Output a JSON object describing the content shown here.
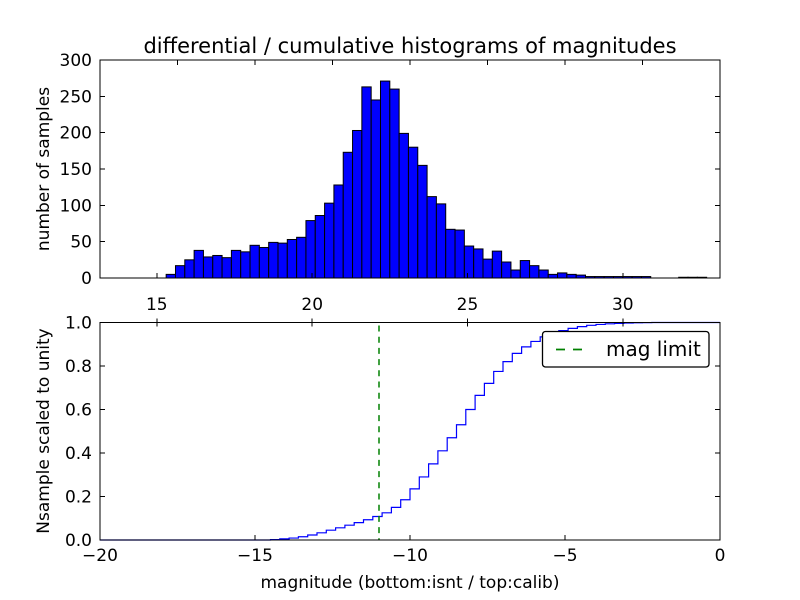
{
  "figure": {
    "title": "differential / cumulative histograms of magnitudes",
    "background_color": "#ffffff"
  },
  "top_plot": {
    "ylabel": "number of samples",
    "ylim": [
      0,
      300
    ],
    "ytick_values": [
      0,
      50,
      100,
      150,
      200,
      250,
      300
    ],
    "ytick_labels": [
      "0",
      "50",
      "100",
      "150",
      "200",
      "250",
      "300"
    ],
    "xlim": [
      13.17,
      33.13
    ],
    "xtick_values": [
      15,
      20,
      25,
      30
    ],
    "xtick_labels": [
      "15",
      "20",
      "25",
      "30"
    ]
  },
  "bottom_plot": {
    "ylabel": "Nsample scaled to unity",
    "xlabel": "magnitude (bottom:isnt / top:calib)",
    "ylim": [
      0,
      1
    ],
    "ytick_values": [
      0,
      0.2,
      0.4,
      0.6,
      0.8,
      1.0
    ],
    "ytick_labels": [
      "0.0",
      "0.2",
      "0.4",
      "0.6",
      "0.8",
      "1.0"
    ],
    "xlim": [
      -20,
      0
    ],
    "xtick_values": [
      -20,
      -15,
      -10,
      -5,
      0
    ],
    "xtick_labels": [
      "−20",
      "−15",
      "−10",
      "−5",
      "0"
    ],
    "top_axis_tick_values": [
      15,
      20,
      25,
      30
    ]
  },
  "legend": {
    "label": "mag limit"
  },
  "colors": {
    "hist_fill": "#0000ff",
    "hist_edge": "#000000",
    "curve": "#0000ff",
    "mag_limit": "#008000",
    "axes": "#000000",
    "background": "#ffffff"
  },
  "chart_data": [
    {
      "type": "bar",
      "subplot": "top",
      "title": "differential / cumulative histograms of magnitudes",
      "xlabel": "",
      "ylabel": "number of samples",
      "xlim": [
        13.17,
        33.13
      ],
      "ylim": [
        0,
        300
      ],
      "xticks": [
        15,
        20,
        25,
        30
      ],
      "yticks": [
        0,
        50,
        100,
        150,
        200,
        250,
        300
      ],
      "grid": false,
      "bin_start": 15.3,
      "bin_width": 0.3,
      "values": [
        5,
        17,
        25,
        38,
        29,
        31,
        28,
        38,
        36,
        45,
        42,
        49,
        48,
        53,
        56,
        79,
        86,
        103,
        128,
        173,
        203,
        263,
        245,
        271,
        260,
        199,
        180,
        155,
        112,
        102,
        67,
        66,
        44,
        40,
        26,
        37,
        22,
        11,
        24,
        17,
        11,
        5,
        7,
        5,
        4,
        2,
        2,
        2,
        2,
        2,
        2,
        2,
        0,
        0,
        0,
        1,
        1,
        1
      ]
    },
    {
      "type": "line",
      "subplot": "bottom",
      "style": "cumulative-step",
      "xlabel": "magnitude (bottom:isnt / top:calib)",
      "ylabel": "Nsample scaled to unity",
      "xlim": [
        -20,
        0
      ],
      "ylim": [
        0,
        1
      ],
      "xticks": [
        -20,
        -15,
        -10,
        -5,
        0
      ],
      "yticks": [
        0,
        0.2,
        0.4,
        0.6,
        0.8,
        1.0
      ],
      "grid": false,
      "legend_position": "upper right",
      "mag_limit_x": -11,
      "legend_entries": [
        "mag limit"
      ],
      "steps": [
        [
          -14.5,
          0.002
        ],
        [
          -14.2,
          0.005
        ],
        [
          -13.9,
          0.009
        ],
        [
          -13.6,
          0.015
        ],
        [
          -13.3,
          0.023
        ],
        [
          -13.0,
          0.033
        ],
        [
          -12.7,
          0.045
        ],
        [
          -12.4,
          0.056
        ],
        [
          -12.1,
          0.068
        ],
        [
          -11.8,
          0.08
        ],
        [
          -11.5,
          0.093
        ],
        [
          -11.2,
          0.108
        ],
        [
          -10.9,
          0.125
        ],
        [
          -10.6,
          0.15
        ],
        [
          -10.3,
          0.185
        ],
        [
          -10.0,
          0.235
        ],
        [
          -9.7,
          0.29
        ],
        [
          -9.4,
          0.35
        ],
        [
          -9.1,
          0.41
        ],
        [
          -8.8,
          0.47
        ],
        [
          -8.5,
          0.53
        ],
        [
          -8.2,
          0.6
        ],
        [
          -7.9,
          0.665
        ],
        [
          -7.6,
          0.72
        ],
        [
          -7.3,
          0.775
        ],
        [
          -7.0,
          0.82
        ],
        [
          -6.7,
          0.858
        ],
        [
          -6.4,
          0.888
        ],
        [
          -6.1,
          0.913
        ],
        [
          -5.8,
          0.934
        ],
        [
          -5.5,
          0.951
        ],
        [
          -5.2,
          0.963
        ],
        [
          -4.9,
          0.973
        ],
        [
          -4.6,
          0.981
        ],
        [
          -4.3,
          0.987
        ],
        [
          -4.0,
          0.991
        ],
        [
          -3.7,
          0.994
        ],
        [
          -3.4,
          0.996
        ],
        [
          -3.1,
          0.9975
        ],
        [
          -2.8,
          0.9985
        ],
        [
          -2.5,
          0.9993
        ],
        [
          -2.2,
          1.0
        ]
      ]
    }
  ]
}
